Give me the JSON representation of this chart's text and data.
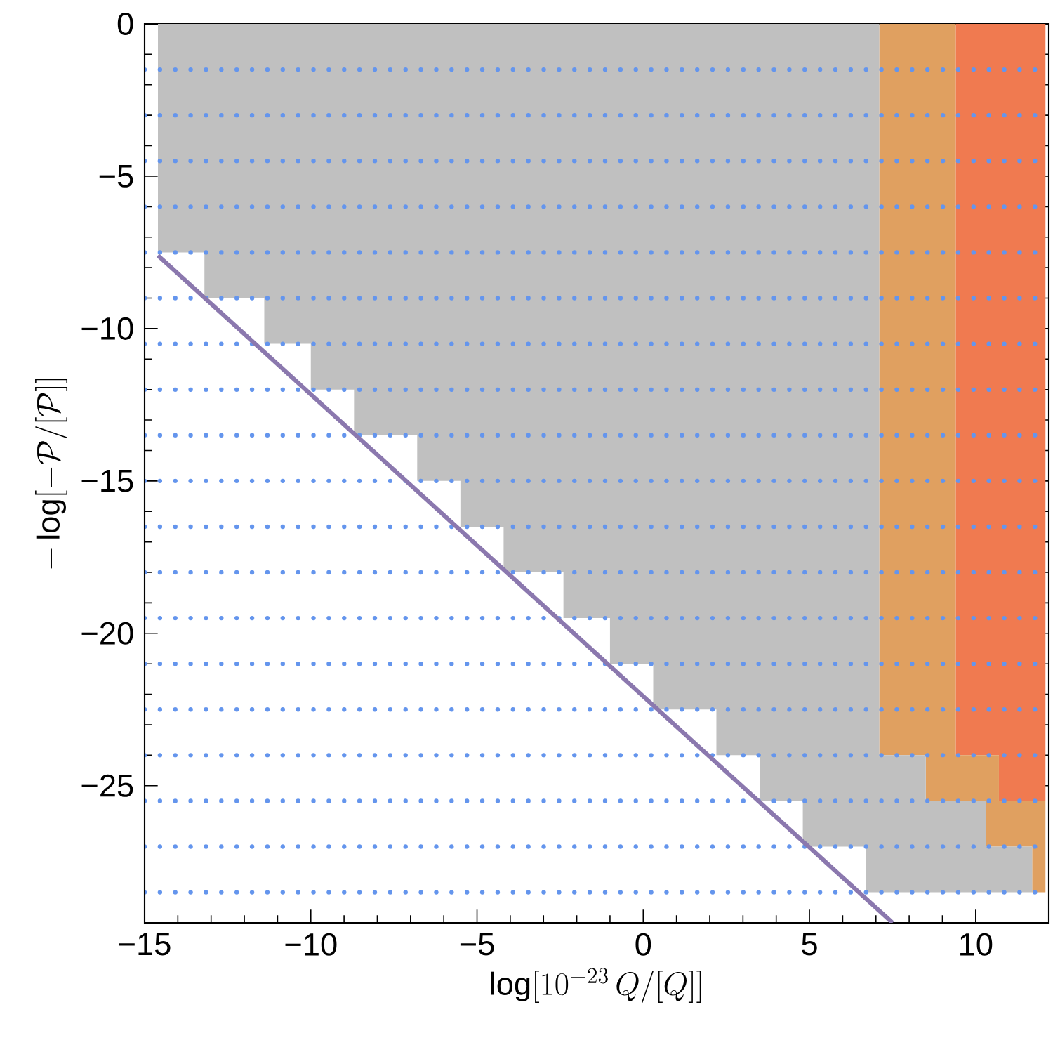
{
  "chart_data": {
    "type": "area",
    "stacked": true,
    "xlabel": "\\log[10^{-23}\\,Q/[Q]]",
    "ylabel": "-\\log[-\\mathcal{P}/[\\mathcal{P}]]",
    "xlim": [
      -15,
      12.2
    ],
    "ylim": [
      -29.5,
      0
    ],
    "xticks": [
      {
        "value": -15,
        "label": "−15"
      },
      {
        "value": -10,
        "label": "−10"
      },
      {
        "value": -5,
        "label": "−5"
      },
      0,
      5,
      10
    ],
    "yticks": [
      0,
      {
        "value": -5,
        "label": "−5"
      },
      {
        "value": -10,
        "label": "−10"
      },
      {
        "value": -15,
        "label": "−15"
      },
      {
        "value": -20,
        "label": "−20"
      },
      {
        "value": -25,
        "label": "−25"
      }
    ],
    "x": [
      -14.6,
      -13.2,
      -13.2,
      -11.4,
      -11.4,
      -10.0,
      -10.0,
      -8.7,
      -8.7,
      -6.8,
      -6.8,
      -5.5,
      -5.5,
      -4.2,
      -4.2,
      -2.4,
      -2.4,
      -1.0,
      -1.0,
      0.3,
      0.3,
      2.2,
      2.2,
      3.5,
      3.5,
      4.8,
      4.8,
      6.7,
      6.7,
      7.1,
      7.1,
      8.5,
      8.5,
      9.4,
      9.4,
      10.3,
      10.3,
      10.7,
      10.7,
      11.7,
      11.7,
      12.1
    ],
    "series": [
      {
        "color": "#f07a50",
        "values": [
          0,
          0,
          0,
          0,
          0,
          0,
          0,
          0,
          0,
          0,
          0,
          0,
          0,
          0,
          0,
          0,
          0,
          0,
          0,
          0,
          0,
          0,
          0,
          0,
          0,
          0,
          0,
          0,
          0,
          0,
          0,
          0,
          0,
          0,
          -24,
          -24,
          -24,
          -24,
          -25.5,
          -25.5,
          -25.5,
          -25.5
        ]
      },
      {
        "color": "#e0a060",
        "values": [
          0,
          0,
          0,
          0,
          0,
          0,
          0,
          0,
          0,
          0,
          0,
          0,
          0,
          0,
          0,
          0,
          0,
          0,
          0,
          0,
          0,
          0,
          0,
          0,
          0,
          0,
          0,
          0,
          0,
          0,
          -24,
          -24,
          -25.5,
          -25.5,
          -1.5,
          -1.5,
          -3,
          -3,
          -1.5,
          -1.5,
          -3,
          -3
        ]
      },
      {
        "color": "#c0c0c0",
        "values": [
          -7.5,
          -7.5,
          -9,
          -9,
          -10.5,
          -10.5,
          -12,
          -12,
          -13.5,
          -13.5,
          -15,
          -15,
          -16.5,
          -16.5,
          -18,
          -18,
          -19.5,
          -19.5,
          -21,
          -21,
          -22.5,
          -22.5,
          -24,
          -24,
          -25.5,
          -25.5,
          -27,
          -27,
          -28.5,
          -28.5,
          -4.5,
          -4.5,
          -3,
          -3,
          -3,
          -3,
          -1.5,
          -1.5,
          -1.5,
          -1.5,
          null,
          null
        ]
      },
      {
        "type": "line",
        "color": "#8b78ae",
        "x": [
          -14.6,
          7.5
        ],
        "values": [
          -7.6,
          -29.5
        ]
      }
    ],
    "ref_lines": [
      {
        "axis": "y",
        "value": -1.5,
        "color": "#6495ed",
        "line_style": "dotted"
      },
      {
        "axis": "y",
        "value": -3,
        "color": "#6495ed",
        "line_style": "dotted"
      },
      {
        "axis": "y",
        "value": -4.5,
        "color": "#6495ed",
        "line_style": "dotted"
      },
      {
        "axis": "y",
        "value": -6,
        "color": "#6495ed",
        "line_style": "dotted"
      },
      {
        "axis": "y",
        "value": -7.5,
        "color": "#6495ed",
        "line_style": "dotted"
      },
      {
        "axis": "y",
        "value": -9,
        "color": "#6495ed",
        "line_style": "dotted"
      },
      {
        "axis": "y",
        "value": -10.5,
        "color": "#6495ed",
        "line_style": "dotted"
      },
      {
        "axis": "y",
        "value": -12,
        "color": "#6495ed",
        "line_style": "dotted"
      },
      {
        "axis": "y",
        "value": -13.5,
        "color": "#6495ed",
        "line_style": "dotted"
      },
      {
        "axis": "y",
        "value": -15,
        "color": "#6495ed",
        "line_style": "dotted"
      },
      {
        "axis": "y",
        "value": -16.5,
        "color": "#6495ed",
        "line_style": "dotted"
      },
      {
        "axis": "y",
        "value": -18,
        "color": "#6495ed",
        "line_style": "dotted"
      },
      {
        "axis": "y",
        "value": -19.5,
        "color": "#6495ed",
        "line_style": "dotted"
      },
      {
        "axis": "y",
        "value": -21,
        "color": "#6495ed",
        "line_style": "dotted"
      },
      {
        "axis": "y",
        "value": -22.5,
        "color": "#6495ed",
        "line_style": "dotted"
      },
      {
        "axis": "y",
        "value": -24,
        "color": "#6495ed",
        "line_style": "dotted"
      },
      {
        "axis": "y",
        "value": -25.5,
        "color": "#6495ed",
        "line_style": "dotted"
      },
      {
        "axis": "y",
        "value": -27,
        "color": "#6495ed",
        "line_style": "dotted"
      },
      {
        "axis": "y",
        "value": -28.5,
        "color": "#6495ed",
        "line_style": "dotted"
      }
    ]
  }
}
